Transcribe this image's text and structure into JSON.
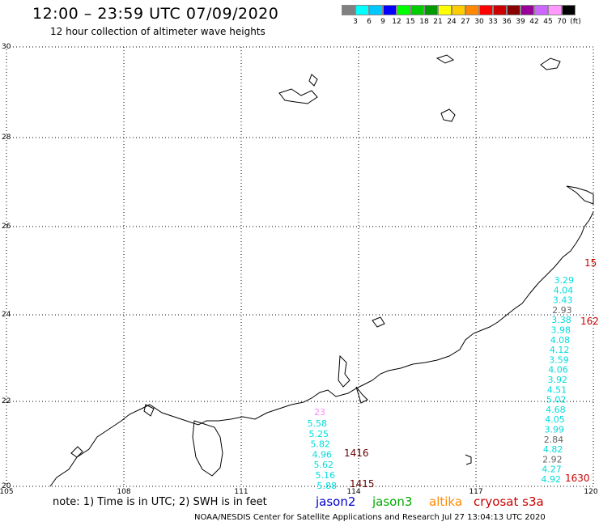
{
  "header": {
    "title": "12:00 – 23:59 UTC 07/09/2020",
    "subtitle": "12 hour collection of altimeter wave heights"
  },
  "color_scale": {
    "colors": [
      "#808080",
      "#00ffff",
      "#00c8ff",
      "#0000ff",
      "#00ff00",
      "#00cc00",
      "#009900",
      "#ffff00",
      "#ffcc00",
      "#ff8800",
      "#ff0000",
      "#cc0000",
      "#880000",
      "#990099",
      "#cc66ff",
      "#ff99ff",
      "#000000"
    ],
    "labels": [
      "3",
      "6",
      "9",
      "12",
      "15",
      "18",
      "21",
      "24",
      "27",
      "30",
      "33",
      "36",
      "39",
      "42",
      "45",
      "70",
      "(ft)"
    ]
  },
  "map": {
    "lat_labels": [
      "30",
      "28",
      "26",
      "24",
      "22",
      "20"
    ],
    "lon_labels": [
      "105",
      "108",
      "111",
      "114",
      "117",
      "120"
    ]
  },
  "tracks": {
    "cyan_a": [
      "3.29",
      "4.04",
      "3.43",
      "",
      "3.38",
      "3.98",
      "4.08",
      "4.12",
      "3.59",
      "4.06",
      "3.92",
      "4.51",
      "5.02",
      "4.68",
      "4.05",
      "3.99",
      "",
      "4.82",
      "",
      "4.27",
      "4.92"
    ],
    "gray_a": [
      "2.93",
      "2.84",
      "2.92"
    ],
    "cyan_b": [
      "5.58",
      "5.25",
      "5.82",
      "4.96",
      "5.62",
      "5.16",
      "5.88"
    ],
    "pink_label": "23",
    "time_labels": [
      {
        "text": "15",
        "color": "#cc0000"
      },
      {
        "text": "162",
        "color": "#cc0000"
      },
      {
        "text": "1630",
        "color": "#cc0000"
      },
      {
        "text": "1416",
        "color": "#660000"
      },
      {
        "text": "1415",
        "color": "#660000"
      }
    ]
  },
  "legend": {
    "note": "note: 1) Time is in UTC; 2) SWH is in feet",
    "satellites": [
      {
        "name": "jason2",
        "color": "#0000cc"
      },
      {
        "name": "jason3",
        "color": "#00aa00"
      },
      {
        "name": "altika",
        "color": "#ff8800"
      },
      {
        "name": "cryosat s3a",
        "color": "#cc0000"
      }
    ]
  },
  "footer": {
    "text": "NOAA/NESDIS Center for Satellite Applications and Research   Jul 27 13:04:13 UTC 2020"
  }
}
